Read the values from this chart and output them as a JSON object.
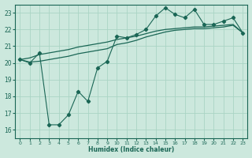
{
  "xlabel": "Humidex (Indice chaleur)",
  "ylabel": "",
  "bg_color": "#cce8dd",
  "grid_color": "#aad4c4",
  "line_color": "#1a6655",
  "xlim": [
    -0.5,
    23.5
  ],
  "ylim": [
    15.5,
    23.5
  ],
  "xticks": [
    0,
    1,
    2,
    3,
    4,
    5,
    6,
    7,
    8,
    9,
    10,
    11,
    12,
    13,
    14,
    15,
    16,
    17,
    18,
    19,
    20,
    21,
    22,
    23
  ],
  "yticks": [
    16,
    17,
    18,
    19,
    20,
    21,
    22,
    23
  ],
  "line1_x": [
    0,
    1,
    2,
    3,
    4,
    5,
    6,
    7,
    8,
    9,
    10,
    11,
    12,
    13,
    14,
    15,
    16,
    17,
    18,
    19,
    20,
    21,
    22,
    23
  ],
  "line1_y": [
    20.2,
    20.0,
    20.6,
    16.3,
    16.3,
    16.9,
    18.3,
    17.7,
    19.7,
    20.1,
    21.6,
    21.5,
    21.7,
    22.0,
    22.8,
    23.3,
    22.9,
    22.7,
    23.2,
    22.3,
    22.3,
    22.5,
    22.7,
    21.8
  ],
  "line2_x": [
    0,
    1,
    2,
    3,
    4,
    5,
    6,
    7,
    8,
    9,
    10,
    11,
    12,
    13,
    14,
    15,
    16,
    17,
    18,
    19,
    20,
    21,
    22,
    23
  ],
  "line2_y": [
    20.2,
    20.3,
    20.5,
    20.6,
    20.7,
    20.8,
    20.95,
    21.05,
    21.15,
    21.25,
    21.4,
    21.5,
    21.6,
    21.75,
    21.9,
    22.0,
    22.05,
    22.1,
    22.15,
    22.15,
    22.2,
    22.25,
    22.3,
    21.8
  ],
  "line3_x": [
    0,
    1,
    2,
    3,
    4,
    5,
    6,
    7,
    8,
    9,
    10,
    11,
    12,
    13,
    14,
    15,
    16,
    17,
    18,
    19,
    20,
    21,
    22,
    23
  ],
  "line3_y": [
    20.2,
    20.05,
    20.1,
    20.2,
    20.3,
    20.4,
    20.55,
    20.65,
    20.75,
    20.85,
    21.1,
    21.2,
    21.35,
    21.55,
    21.7,
    21.85,
    21.95,
    22.0,
    22.05,
    22.05,
    22.1,
    22.15,
    22.25,
    21.8
  ]
}
